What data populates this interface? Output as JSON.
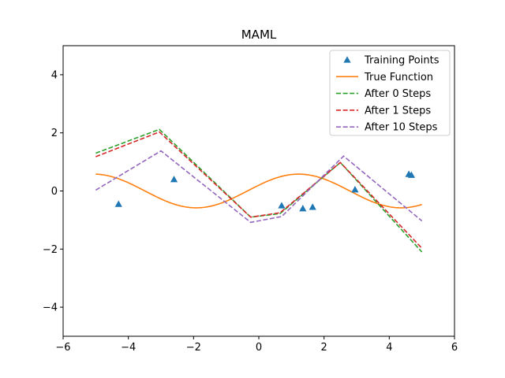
{
  "chart_data": {
    "type": "line",
    "title": "MAML",
    "xlabel": "",
    "ylabel": "",
    "xlim": [
      -6,
      6
    ],
    "ylim": [
      -5,
      5
    ],
    "xticks": [
      -6,
      -4,
      -2,
      0,
      2,
      4,
      6
    ],
    "yticks": [
      -4,
      -2,
      0,
      2,
      4
    ],
    "xtick_labels": [
      "−6",
      "−4",
      "−2",
      "0",
      "2",
      "4",
      "6"
    ],
    "ytick_labels": [
      "−4",
      "−2",
      "0",
      "2",
      "4"
    ],
    "grid": false,
    "legend_position": "top-right",
    "training_points": {
      "name": "Training Points",
      "color": "#1f77b4",
      "marker": "triangle",
      "x": [
        -4.3,
        -2.6,
        0.7,
        1.35,
        1.65,
        2.95,
        4.6,
        4.68
      ],
      "y": [
        -0.45,
        0.4,
        -0.5,
        -0.6,
        -0.55,
        0.05,
        0.58,
        0.55
      ]
    },
    "true_function": {
      "name": "True Function",
      "color": "#ff7f0e",
      "amplitude": 0.58,
      "phase": 0.35,
      "x_range": [
        -5,
        5
      ]
    },
    "series": [
      {
        "name": "After 0 Steps",
        "color": "#2ca02c",
        "style": "dashed",
        "x": [
          -5,
          -3.05,
          -0.25,
          0.65,
          2.5,
          5
        ],
        "y": [
          1.3,
          2.12,
          -0.9,
          -0.78,
          0.98,
          -2.1
        ]
      },
      {
        "name": "After 1 Steps",
        "color": "#d62728",
        "style": "dashed",
        "x": [
          -5,
          -3.05,
          -0.25,
          0.65,
          2.5,
          5
        ],
        "y": [
          1.18,
          2.03,
          -0.9,
          -0.75,
          0.98,
          -1.97
        ]
      },
      {
        "name": "After 10 Steps",
        "color": "#9467bd",
        "style": "dashed",
        "x": [
          -5,
          -3.0,
          -0.25,
          0.7,
          2.6,
          5
        ],
        "y": [
          0.03,
          1.38,
          -1.08,
          -0.88,
          1.2,
          -1.03
        ]
      }
    ]
  }
}
